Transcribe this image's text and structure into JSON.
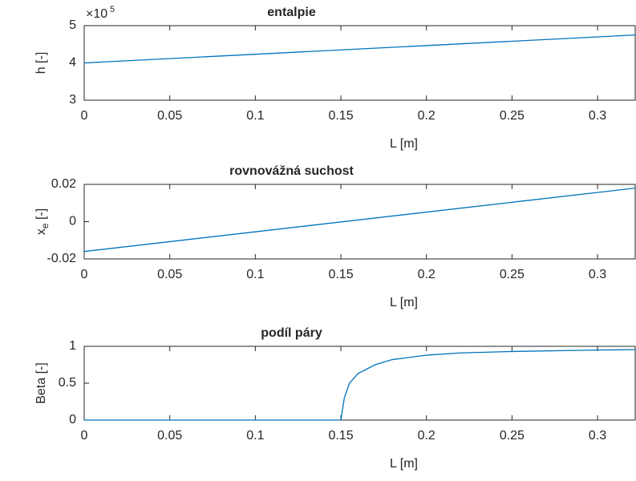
{
  "chart_data": [
    {
      "type": "line",
      "title": "entalpie",
      "xlabel": "L [m]",
      "ylabel": "h [-]",
      "y_multiplier": {
        "base": "×10",
        "exponent": "5"
      },
      "x": [
        0,
        0.322
      ],
      "series": [
        {
          "color": "#0072bd",
          "values": [
            400000,
            475000
          ]
        }
      ],
      "xlim": [
        0,
        0.322
      ],
      "xticks": [
        0,
        0.05,
        0.1,
        0.15,
        0.2,
        0.25,
        0.3
      ],
      "ylim": [
        300000,
        500000
      ],
      "yticks": [
        {
          "value": 300000,
          "label": "3"
        },
        {
          "value": 400000,
          "label": "4"
        },
        {
          "value": 500000,
          "label": "5"
        }
      ]
    },
    {
      "type": "line",
      "title": "rovnovážná suchost",
      "xlabel": "L [m]",
      "ylabel": {
        "main": "x",
        "sub": "e",
        "rest": " [-]"
      },
      "x": [
        0,
        0.322
      ],
      "series": [
        {
          "color": "#0072bd",
          "values": [
            -0.016,
            0.018
          ]
        }
      ],
      "xlim": [
        0,
        0.322
      ],
      "xticks": [
        0,
        0.05,
        0.1,
        0.15,
        0.2,
        0.25,
        0.3
      ],
      "ylim": [
        -0.02,
        0.02
      ],
      "yticks": [
        -0.02,
        0,
        0.02
      ]
    },
    {
      "type": "line",
      "title": "podíl páry",
      "xlabel": "L [m]",
      "ylabel": "Beta [-]",
      "x": [
        0,
        0.15,
        0.152,
        0.155,
        0.16,
        0.17,
        0.18,
        0.2,
        0.22,
        0.25,
        0.3,
        0.322
      ],
      "series": [
        {
          "color": "#0072bd",
          "values": [
            0,
            0,
            0.3,
            0.5,
            0.63,
            0.75,
            0.82,
            0.88,
            0.91,
            0.93,
            0.95,
            0.955
          ]
        }
      ],
      "xlim": [
        0,
        0.322
      ],
      "xticks": [
        0,
        0.05,
        0.1,
        0.15,
        0.2,
        0.25,
        0.3
      ],
      "ylim": [
        0,
        1
      ],
      "yticks": [
        0,
        0.5,
        1
      ]
    }
  ]
}
